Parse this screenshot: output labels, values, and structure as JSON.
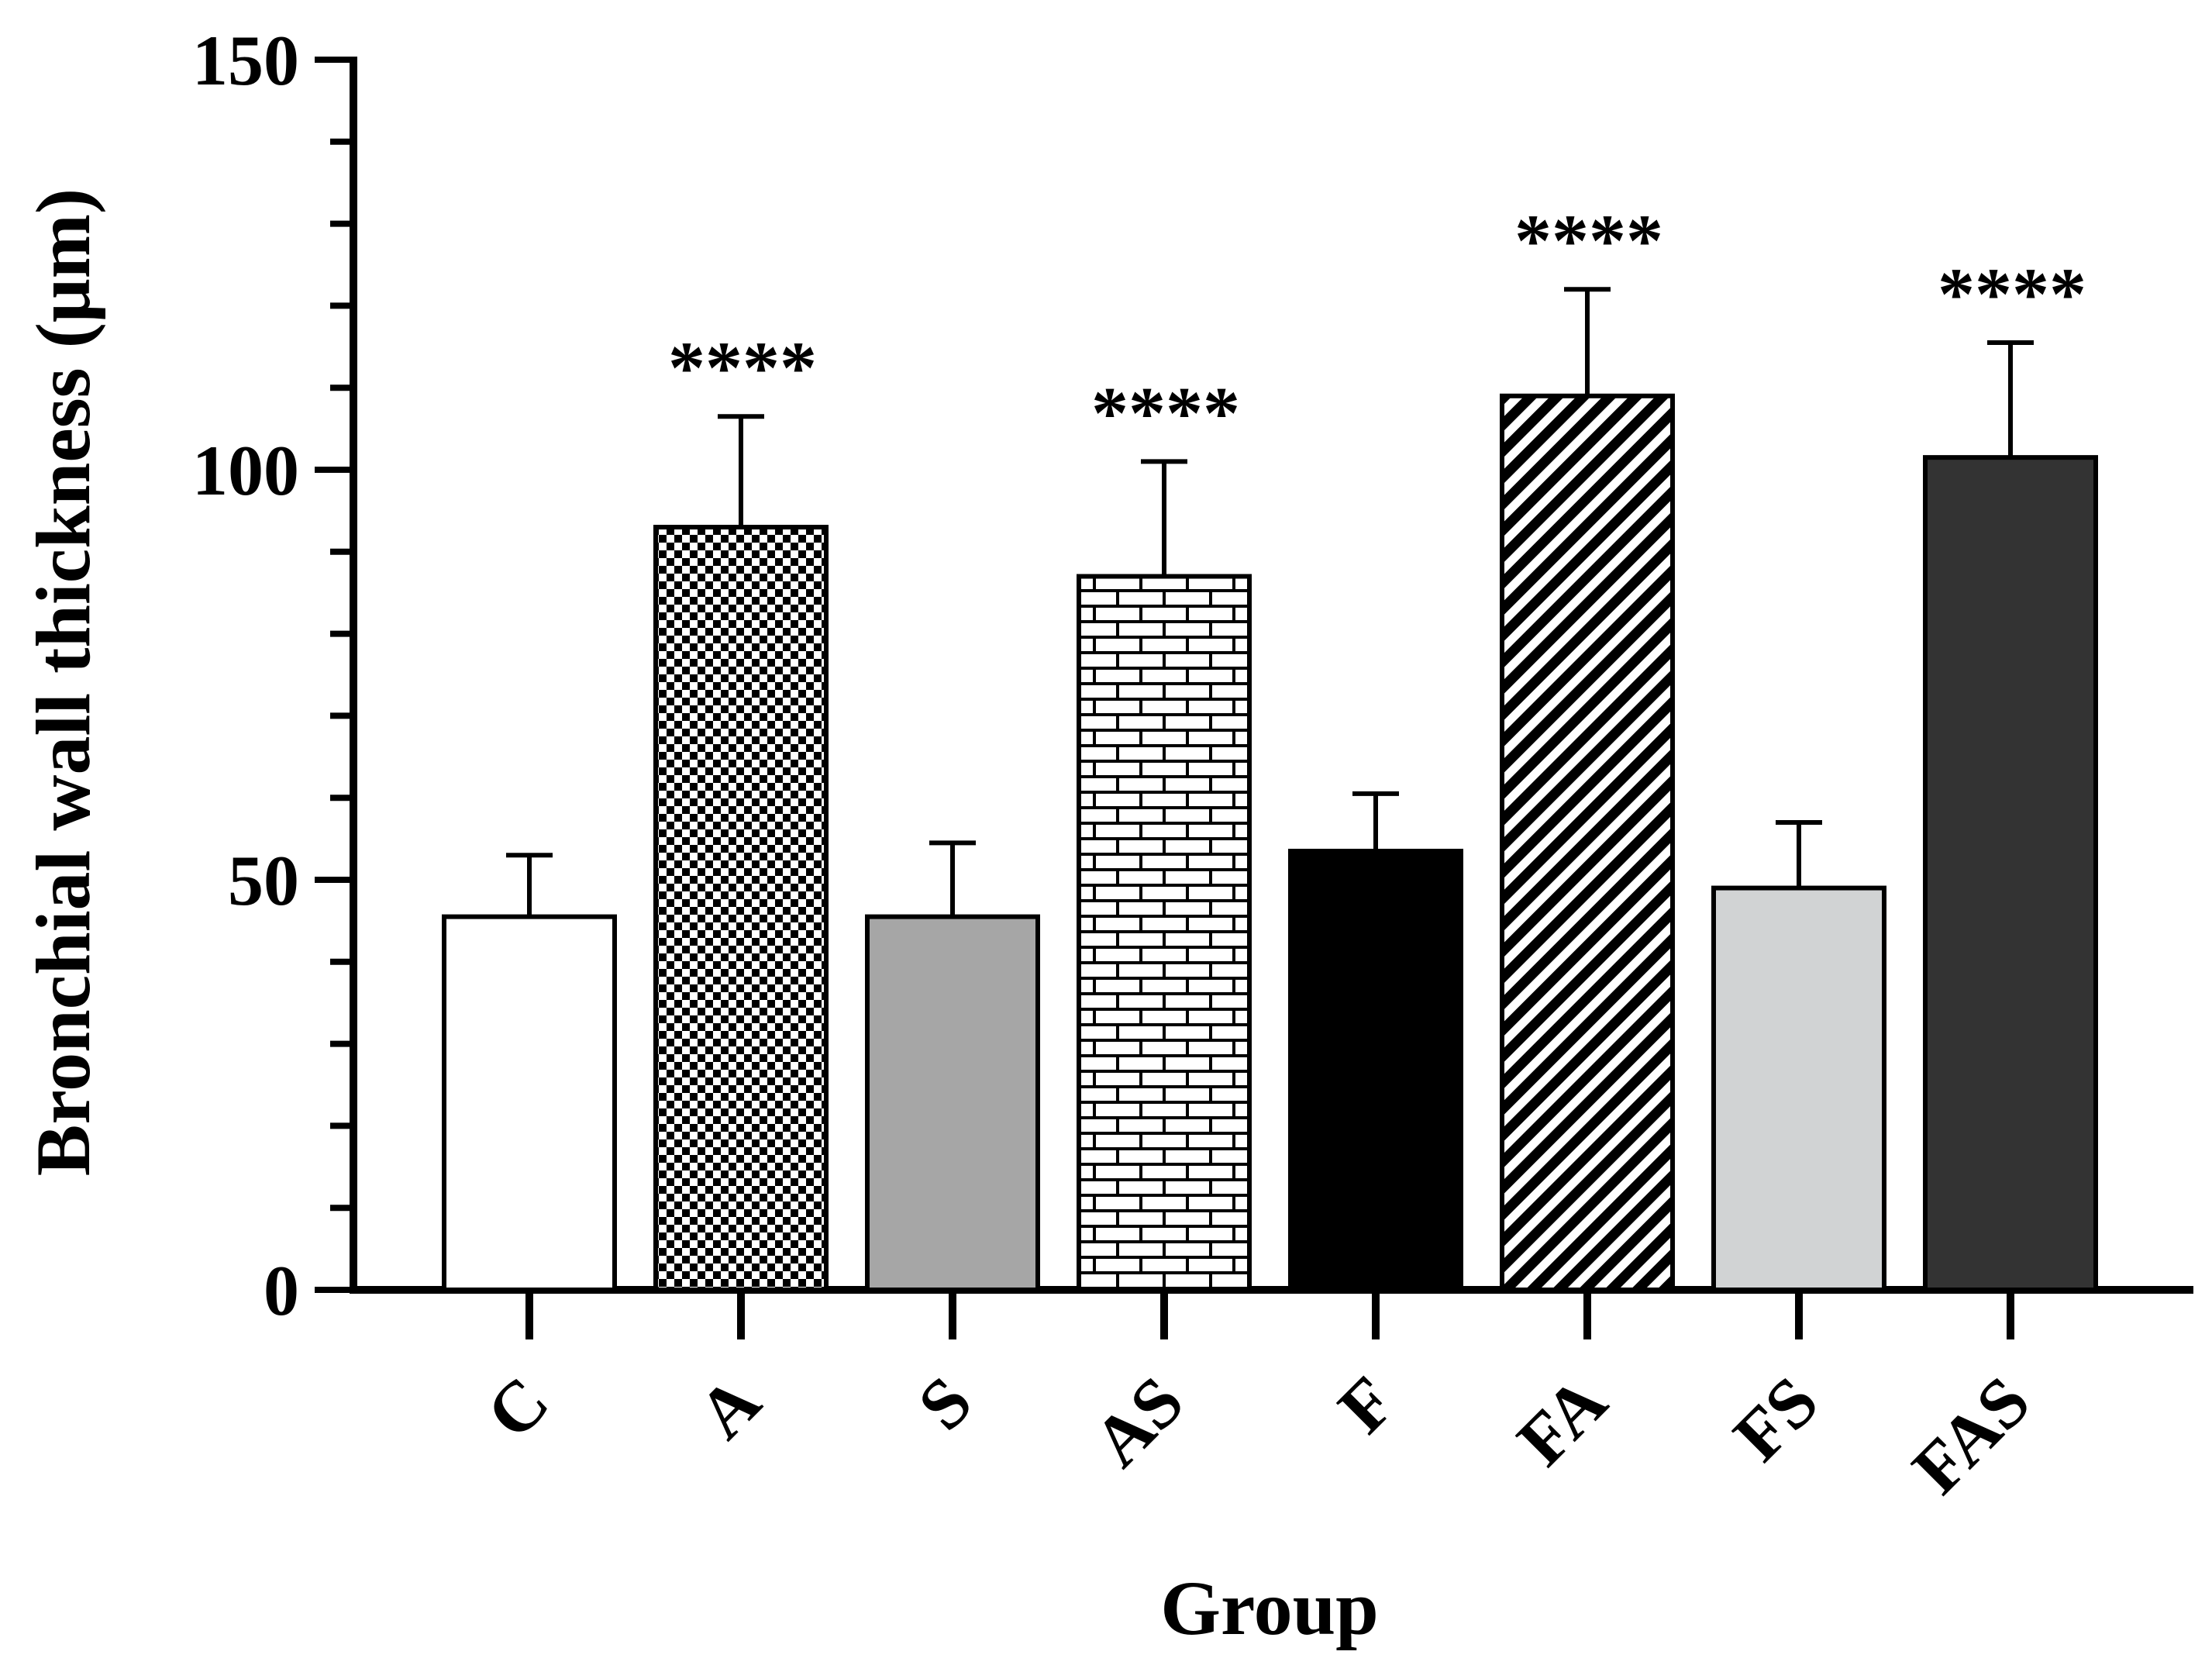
{
  "chart_data": {
    "type": "bar",
    "title": "",
    "xlabel": "Group",
    "ylabel": "Bronchial wall thickness (μm)",
    "ylim": [
      0,
      150
    ],
    "yticks": [
      "0",
      "50",
      "100",
      "150"
    ],
    "categories": [
      "C",
      "A",
      "S",
      "AS",
      "F",
      "FA",
      "FS",
      "FAS"
    ],
    "values": [
      45.5,
      93,
      45.5,
      87,
      53.5,
      109,
      49,
      101.5
    ],
    "errors": [
      7.5,
      13.5,
      9,
      14,
      7,
      13,
      8,
      14
    ],
    "significance": [
      "",
      "****",
      "",
      "****",
      "",
      "****",
      "",
      "****"
    ],
    "fills": [
      "white",
      "checker",
      "#a6a6a6",
      "brick",
      "#000000",
      "diagonal",
      "#d1d3d4",
      "#333333"
    ],
    "grid": false,
    "legend": "none"
  }
}
